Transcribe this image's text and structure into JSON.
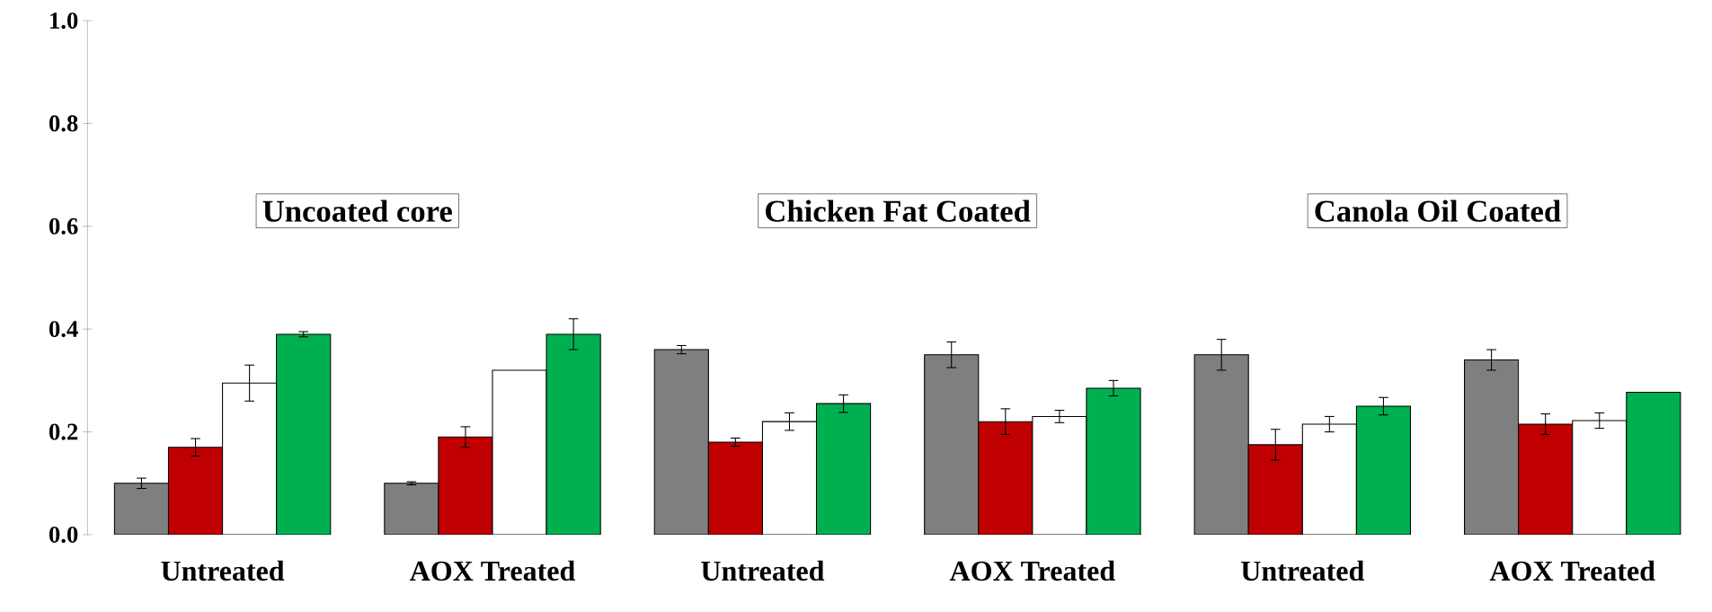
{
  "chart_data": {
    "type": "bar",
    "categories": [
      "Untreated",
      "AOX Treated",
      "Untreated",
      "AOX Treated",
      "Untreated",
      "AOX Treated"
    ],
    "series": [
      {
        "color": "#7f7f7f",
        "values": [
          0.1,
          0.1,
          0.36,
          0.35,
          0.35,
          0.34
        ],
        "errors": [
          0.01,
          0.003,
          0.008,
          0.025,
          0.03,
          0.02
        ]
      },
      {
        "color": "#c00000",
        "values": [
          0.17,
          0.19,
          0.18,
          0.22,
          0.175,
          0.215
        ],
        "errors": [
          0.017,
          0.02,
          0.008,
          0.025,
          0.03,
          0.02
        ]
      },
      {
        "color": "#ffffff",
        "values": [
          0.295,
          0.32,
          0.22,
          0.23,
          0.215,
          0.222
        ],
        "errors": [
          0.035,
          null,
          0.017,
          0.012,
          0.015,
          0.015
        ]
      },
      {
        "color": "#00b050",
        "values": [
          0.39,
          0.39,
          0.255,
          0.285,
          0.25,
          0.277
        ],
        "errors": [
          0.005,
          0.03,
          0.017,
          0.015,
          0.017,
          null
        ]
      }
    ],
    "ylim": [
      0,
      1.0
    ],
    "yticks": [
      {
        "value": 0,
        "label": "0.0"
      },
      {
        "value": 0.2,
        "label": "0.2"
      },
      {
        "value": 0.4,
        "label": "0.4"
      },
      {
        "value": 0.6,
        "label": "0.6"
      },
      {
        "value": 0.8,
        "label": "0.8"
      },
      {
        "value": 1.0,
        "label": "1.0"
      }
    ],
    "annotations": [
      "Uncoated core",
      "Chicken Fat Coated",
      "Canola Oil Coated"
    ]
  }
}
